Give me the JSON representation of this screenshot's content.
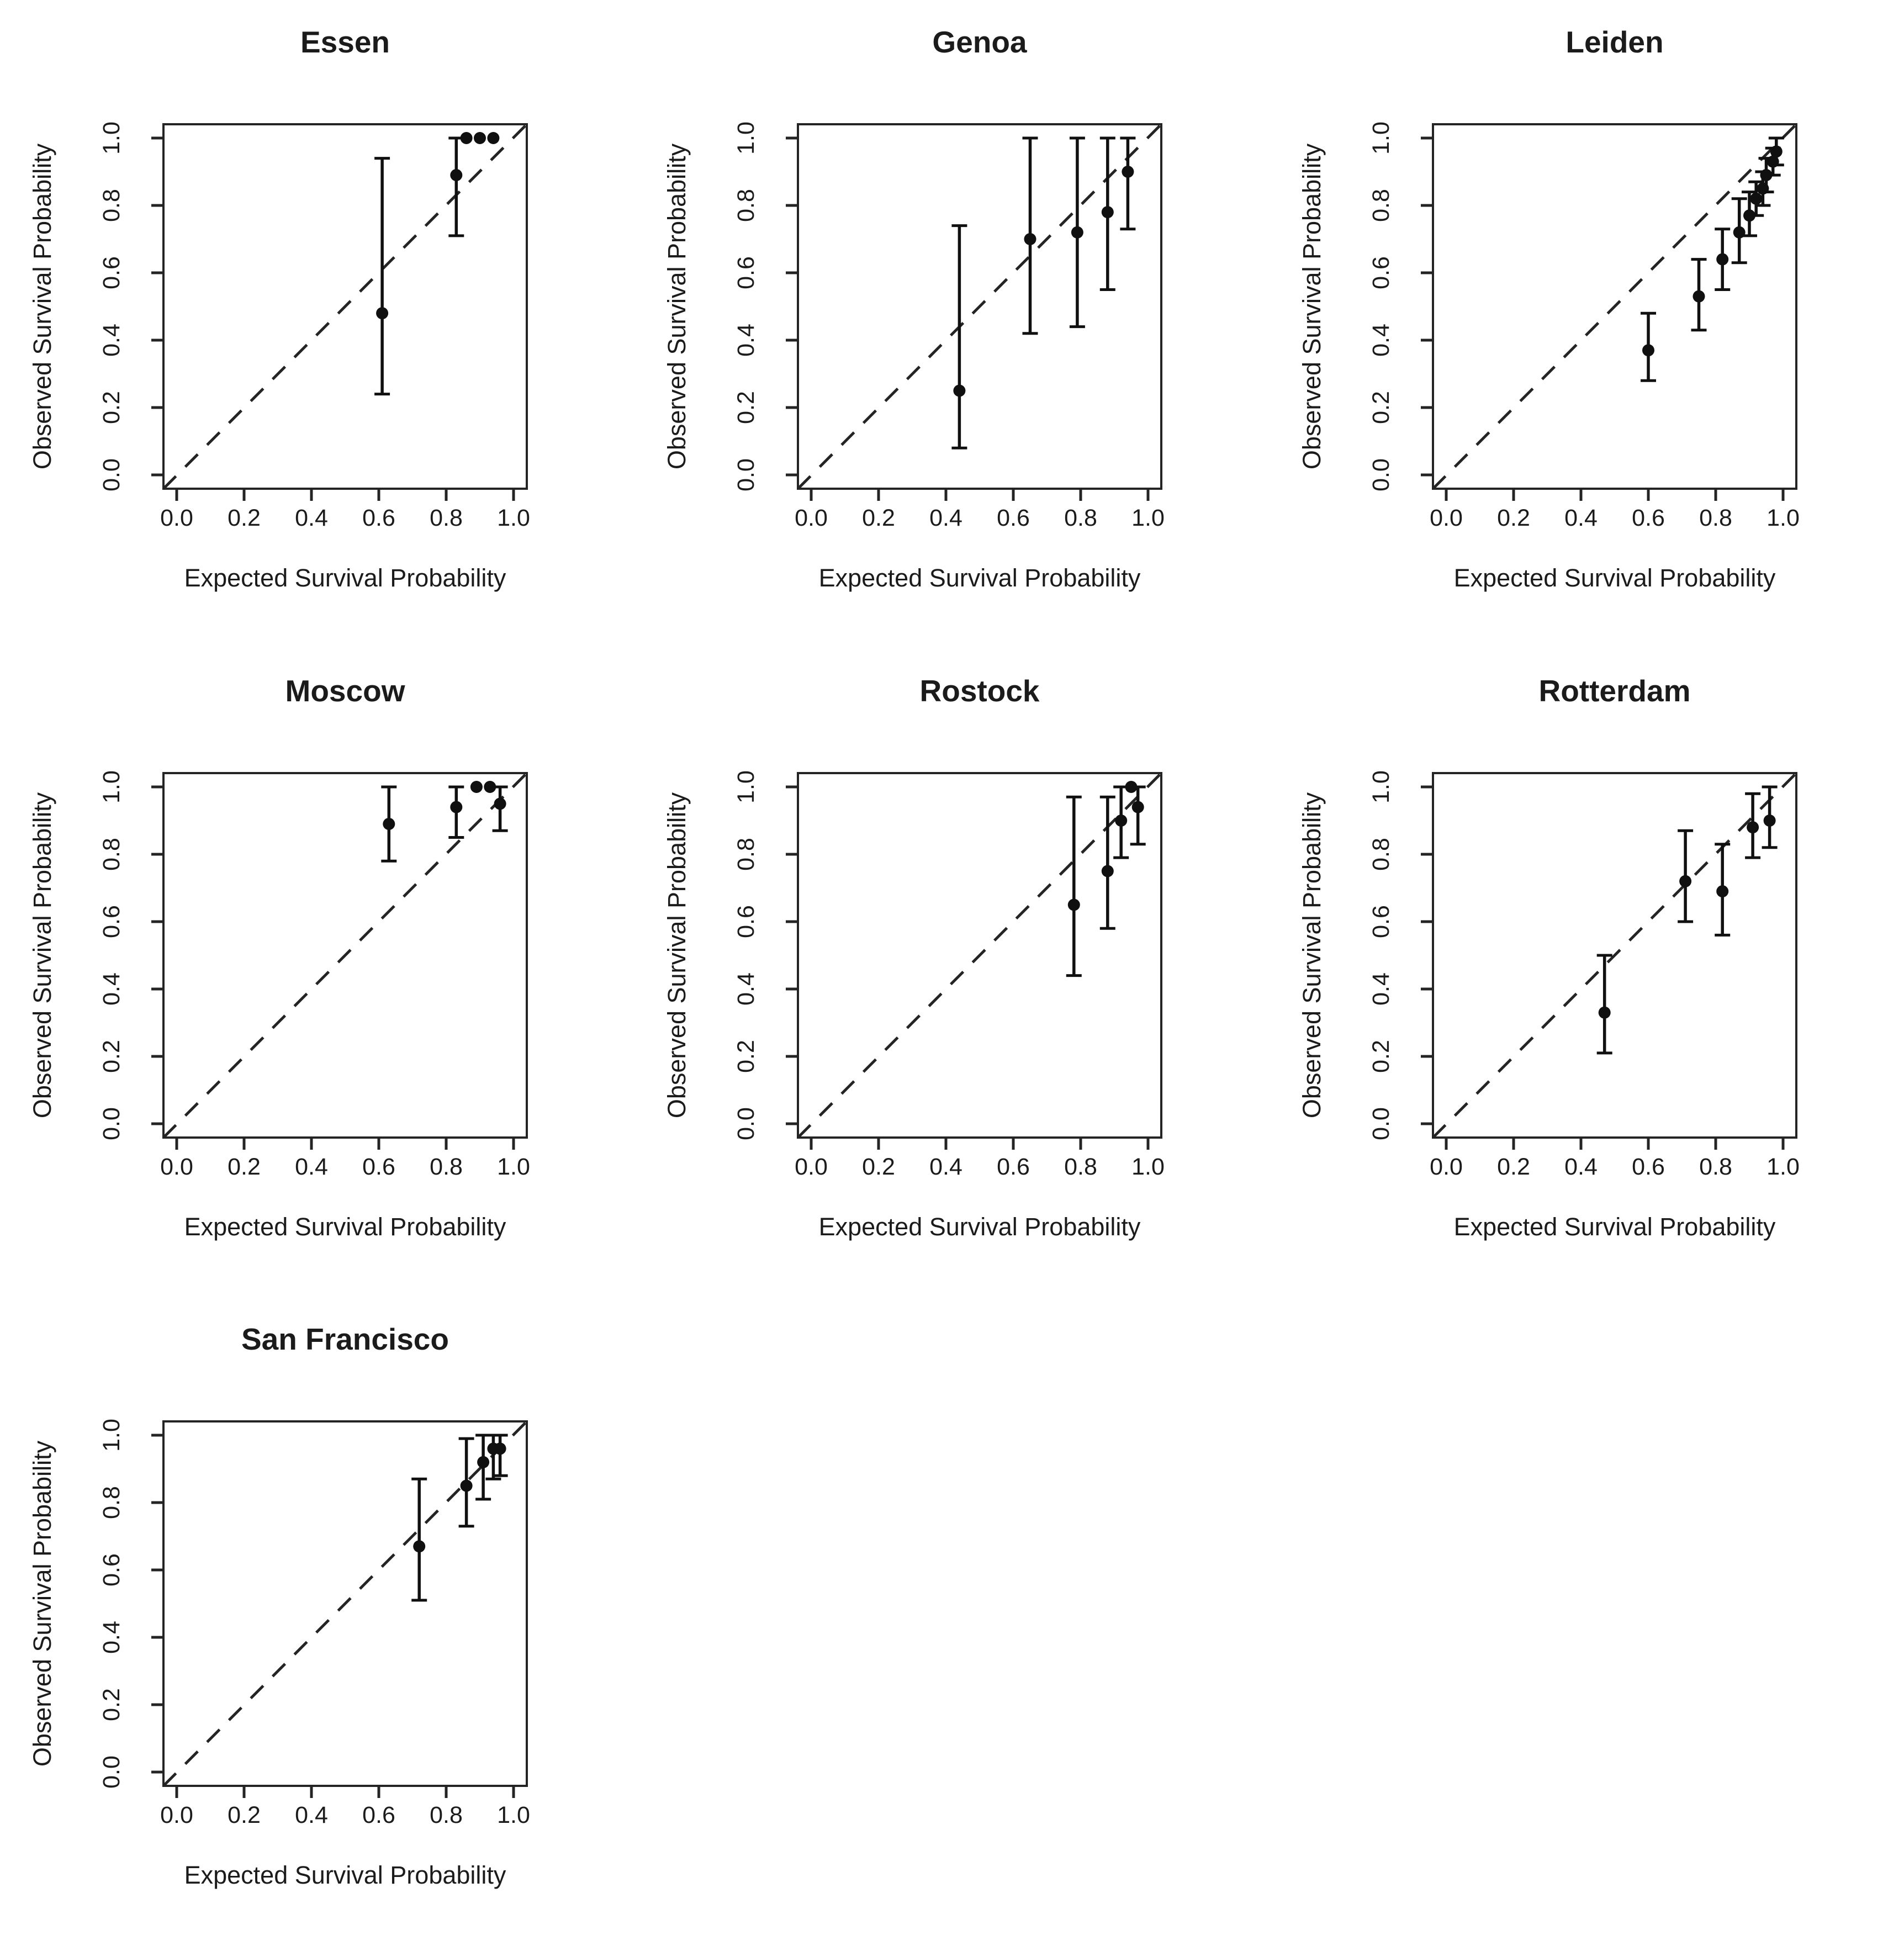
{
  "figure": {
    "background_color": "#ffffff",
    "ink_color": "#242424",
    "text_color": "#1b1b1b",
    "point_color": "#101010",
    "description": "Grid of seven calibration plots of observed versus expected survival probability, one per city, each with a dashed identity line and point estimates with vertical confidence-interval error bars."
  },
  "chart_data": [
    {
      "type": "scatter",
      "title": "Essen",
      "xlabel": "Expected Survival Probability",
      "ylabel": "Observed Survival Probability",
      "xlim": [
        0,
        1
      ],
      "ylim": [
        0,
        1
      ],
      "axis_padding": 0.04,
      "xticks": [
        "0.0",
        "0.2",
        "0.4",
        "0.6",
        "0.8",
        "1.0"
      ],
      "yticks": [
        "0.0",
        "0.2",
        "0.4",
        "0.6",
        "0.8",
        "1.0"
      ],
      "grid": false,
      "diagonal": {
        "style": "dashed",
        "from": [
          0,
          0
        ],
        "to": [
          1,
          1
        ]
      },
      "position": {
        "row": 0,
        "col": 0
      },
      "points": [
        {
          "x": 0.61,
          "y": 0.48,
          "lo": 0.24,
          "hi": 0.94
        },
        {
          "x": 0.83,
          "y": 0.89,
          "lo": 0.71,
          "hi": 1.0
        },
        {
          "x": 0.86,
          "y": 1.0,
          "lo": null,
          "hi": null
        },
        {
          "x": 0.9,
          "y": 1.0,
          "lo": null,
          "hi": null
        },
        {
          "x": 0.94,
          "y": 1.0,
          "lo": null,
          "hi": null
        }
      ]
    },
    {
      "type": "scatter",
      "title": "Genoa",
      "xlabel": "Expected Survival Probability",
      "ylabel": "Observed Survival Probability",
      "xlim": [
        0,
        1
      ],
      "ylim": [
        0,
        1
      ],
      "axis_padding": 0.04,
      "xticks": [
        "0.0",
        "0.2",
        "0.4",
        "0.6",
        "0.8",
        "1.0"
      ],
      "yticks": [
        "0.0",
        "0.2",
        "0.4",
        "0.6",
        "0.8",
        "1.0"
      ],
      "grid": false,
      "diagonal": {
        "style": "dashed",
        "from": [
          0,
          0
        ],
        "to": [
          1,
          1
        ]
      },
      "position": {
        "row": 0,
        "col": 1
      },
      "points": [
        {
          "x": 0.44,
          "y": 0.25,
          "lo": 0.08,
          "hi": 0.74
        },
        {
          "x": 0.65,
          "y": 0.7,
          "lo": 0.42,
          "hi": 1.0
        },
        {
          "x": 0.79,
          "y": 0.72,
          "lo": 0.44,
          "hi": 1.0
        },
        {
          "x": 0.88,
          "y": 0.78,
          "lo": 0.55,
          "hi": 1.0
        },
        {
          "x": 0.94,
          "y": 0.9,
          "lo": 0.73,
          "hi": 1.0
        }
      ]
    },
    {
      "type": "scatter",
      "title": "Leiden",
      "xlabel": "Expected Survival Probability",
      "ylabel": "Observed Survival Probability",
      "xlim": [
        0,
        1
      ],
      "ylim": [
        0,
        1
      ],
      "axis_padding": 0.04,
      "xticks": [
        "0.0",
        "0.2",
        "0.4",
        "0.6",
        "0.8",
        "1.0"
      ],
      "yticks": [
        "0.0",
        "0.2",
        "0.4",
        "0.6",
        "0.8",
        "1.0"
      ],
      "grid": false,
      "diagonal": {
        "style": "dashed",
        "from": [
          0,
          0
        ],
        "to": [
          1,
          1
        ]
      },
      "position": {
        "row": 0,
        "col": 2
      },
      "points": [
        {
          "x": 0.6,
          "y": 0.37,
          "lo": 0.28,
          "hi": 0.48
        },
        {
          "x": 0.75,
          "y": 0.53,
          "lo": 0.43,
          "hi": 0.64
        },
        {
          "x": 0.82,
          "y": 0.64,
          "lo": 0.55,
          "hi": 0.73
        },
        {
          "x": 0.87,
          "y": 0.72,
          "lo": 0.63,
          "hi": 0.82
        },
        {
          "x": 0.9,
          "y": 0.77,
          "lo": 0.71,
          "hi": 0.84
        },
        {
          "x": 0.92,
          "y": 0.82,
          "lo": 0.77,
          "hi": 0.87
        },
        {
          "x": 0.94,
          "y": 0.85,
          "lo": 0.8,
          "hi": 0.9
        },
        {
          "x": 0.95,
          "y": 0.89,
          "lo": 0.84,
          "hi": 0.94
        },
        {
          "x": 0.97,
          "y": 0.93,
          "lo": 0.89,
          "hi": 0.97
        },
        {
          "x": 0.98,
          "y": 0.96,
          "lo": 0.92,
          "hi": 1.0
        }
      ]
    },
    {
      "type": "scatter",
      "title": "Moscow",
      "xlabel": "Expected Survival Probability",
      "ylabel": "Observed Survival Probability",
      "xlim": [
        0,
        1
      ],
      "ylim": [
        0,
        1
      ],
      "axis_padding": 0.04,
      "xticks": [
        "0.0",
        "0.2",
        "0.4",
        "0.6",
        "0.8",
        "1.0"
      ],
      "yticks": [
        "0.0",
        "0.2",
        "0.4",
        "0.6",
        "0.8",
        "1.0"
      ],
      "grid": false,
      "diagonal": {
        "style": "dashed",
        "from": [
          0,
          0
        ],
        "to": [
          1,
          1
        ]
      },
      "position": {
        "row": 1,
        "col": 0
      },
      "points": [
        {
          "x": 0.63,
          "y": 0.89,
          "lo": 0.78,
          "hi": 1.0
        },
        {
          "x": 0.83,
          "y": 0.94,
          "lo": 0.85,
          "hi": 1.0
        },
        {
          "x": 0.89,
          "y": 1.0,
          "lo": null,
          "hi": null
        },
        {
          "x": 0.93,
          "y": 1.0,
          "lo": null,
          "hi": null
        },
        {
          "x": 0.96,
          "y": 0.95,
          "lo": 0.87,
          "hi": 1.0
        }
      ]
    },
    {
      "type": "scatter",
      "title": "Rostock",
      "xlabel": "Expected Survival Probability",
      "ylabel": "Observed Survival Probability",
      "xlim": [
        0,
        1
      ],
      "ylim": [
        0,
        1
      ],
      "axis_padding": 0.04,
      "xticks": [
        "0.0",
        "0.2",
        "0.4",
        "0.6",
        "0.8",
        "1.0"
      ],
      "yticks": [
        "0.0",
        "0.2",
        "0.4",
        "0.6",
        "0.8",
        "1.0"
      ],
      "grid": false,
      "diagonal": {
        "style": "dashed",
        "from": [
          0,
          0
        ],
        "to": [
          1,
          1
        ]
      },
      "position": {
        "row": 1,
        "col": 1
      },
      "points": [
        {
          "x": 0.78,
          "y": 0.65,
          "lo": 0.44,
          "hi": 0.97
        },
        {
          "x": 0.88,
          "y": 0.75,
          "lo": 0.58,
          "hi": 0.97
        },
        {
          "x": 0.92,
          "y": 0.9,
          "lo": 0.79,
          "hi": 1.0
        },
        {
          "x": 0.95,
          "y": 1.0,
          "lo": null,
          "hi": null
        },
        {
          "x": 0.97,
          "y": 0.94,
          "lo": 0.83,
          "hi": 1.0
        }
      ]
    },
    {
      "type": "scatter",
      "title": "Rotterdam",
      "xlabel": "Expected Survival Probability",
      "ylabel": "Observed Survival Probability",
      "xlim": [
        0,
        1
      ],
      "ylim": [
        0,
        1
      ],
      "axis_padding": 0.04,
      "xticks": [
        "0.0",
        "0.2",
        "0.4",
        "0.6",
        "0.8",
        "1.0"
      ],
      "yticks": [
        "0.0",
        "0.2",
        "0.4",
        "0.6",
        "0.8",
        "1.0"
      ],
      "grid": false,
      "diagonal": {
        "style": "dashed",
        "from": [
          0,
          0
        ],
        "to": [
          1,
          1
        ]
      },
      "position": {
        "row": 1,
        "col": 2
      },
      "points": [
        {
          "x": 0.47,
          "y": 0.33,
          "lo": 0.21,
          "hi": 0.5
        },
        {
          "x": 0.71,
          "y": 0.72,
          "lo": 0.6,
          "hi": 0.87
        },
        {
          "x": 0.82,
          "y": 0.69,
          "lo": 0.56,
          "hi": 0.83
        },
        {
          "x": 0.91,
          "y": 0.88,
          "lo": 0.79,
          "hi": 0.98
        },
        {
          "x": 0.96,
          "y": 0.9,
          "lo": 0.82,
          "hi": 1.0
        }
      ]
    },
    {
      "type": "scatter",
      "title": "San Francisco",
      "xlabel": "Expected Survival Probability",
      "ylabel": "Observed Survival Probability",
      "xlim": [
        0,
        1
      ],
      "ylim": [
        0,
        1
      ],
      "axis_padding": 0.04,
      "xticks": [
        "0.0",
        "0.2",
        "0.4",
        "0.6",
        "0.8",
        "1.0"
      ],
      "yticks": [
        "0.0",
        "0.2",
        "0.4",
        "0.6",
        "0.8",
        "1.0"
      ],
      "grid": false,
      "diagonal": {
        "style": "dashed",
        "from": [
          0,
          0
        ],
        "to": [
          1,
          1
        ]
      },
      "position": {
        "row": 2,
        "col": 0
      },
      "points": [
        {
          "x": 0.72,
          "y": 0.67,
          "lo": 0.51,
          "hi": 0.87
        },
        {
          "x": 0.86,
          "y": 0.85,
          "lo": 0.73,
          "hi": 0.99
        },
        {
          "x": 0.91,
          "y": 0.92,
          "lo": 0.81,
          "hi": 1.0
        },
        {
          "x": 0.94,
          "y": 0.96,
          "lo": 0.87,
          "hi": 1.0
        },
        {
          "x": 0.96,
          "y": 0.96,
          "lo": 0.88,
          "hi": 1.0
        }
      ]
    }
  ]
}
